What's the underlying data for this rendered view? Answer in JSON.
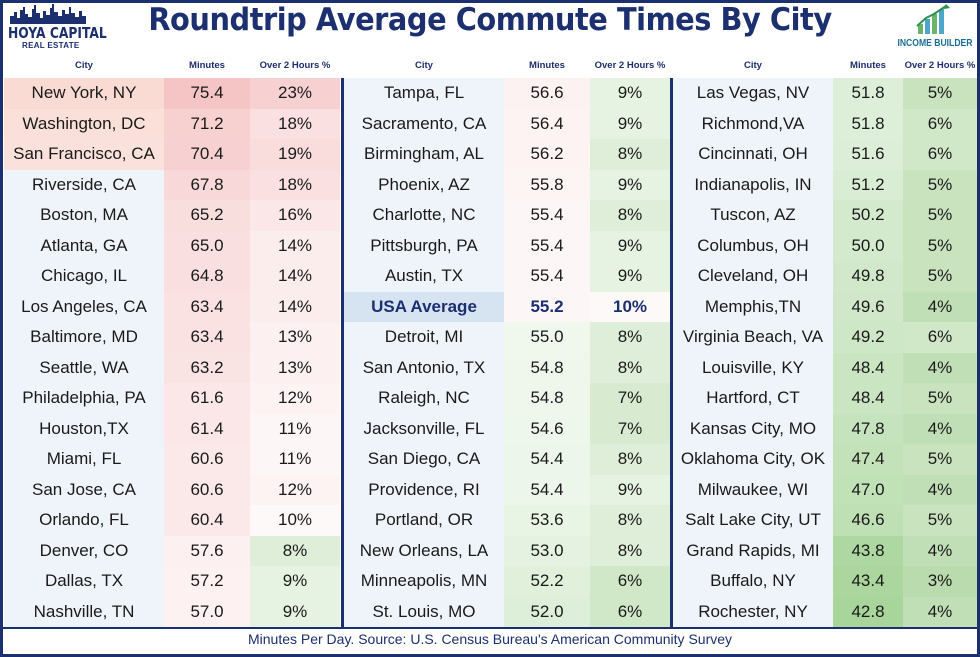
{
  "title": "Roundtrip Average Commute Times By City",
  "logo_left": {
    "name": "HOYA CAPITAL",
    "sub": "REAL ESTATE"
  },
  "logo_right": {
    "name": "INCOME BUILDER"
  },
  "headers": {
    "city": "City",
    "minutes": "Minutes",
    "over2": "Over 2 Hours %"
  },
  "footer": "Minutes Per Day. Source: U.S. Census Bureau's American Community Survey",
  "colors": {
    "navy": "#1c2f6e",
    "red_high": "#f2b9b9",
    "green_high": "#9fd08a",
    "usa_highlight": "#d6e4f2"
  },
  "columns": [
    [
      {
        "city": "New York, NY",
        "minutes": "75.4",
        "pct": "23%"
      },
      {
        "city": "Washington, DC",
        "minutes": "71.2",
        "pct": "18%"
      },
      {
        "city": "San Francisco, CA",
        "minutes": "70.4",
        "pct": "19%"
      },
      {
        "city": "Riverside, CA",
        "minutes": "67.8",
        "pct": "18%"
      },
      {
        "city": "Boston, MA",
        "minutes": "65.2",
        "pct": "16%"
      },
      {
        "city": "Atlanta, GA",
        "minutes": "65.0",
        "pct": "14%"
      },
      {
        "city": "Chicago, IL",
        "minutes": "64.8",
        "pct": "14%"
      },
      {
        "city": "Los Angeles, CA",
        "minutes": "63.4",
        "pct": "14%"
      },
      {
        "city": "Baltimore, MD",
        "minutes": "63.4",
        "pct": "13%"
      },
      {
        "city": "Seattle, WA",
        "minutes": "63.2",
        "pct": "13%"
      },
      {
        "city": "Philadelphia, PA",
        "minutes": "61.6",
        "pct": "12%"
      },
      {
        "city": "Houston,TX",
        "minutes": "61.4",
        "pct": "11%"
      },
      {
        "city": "Miami, FL",
        "minutes": "60.6",
        "pct": "11%"
      },
      {
        "city": "San Jose, CA",
        "minutes": "60.6",
        "pct": "12%"
      },
      {
        "city": "Orlando, FL",
        "minutes": "60.4",
        "pct": "10%"
      },
      {
        "city": "Denver, CO",
        "minutes": "57.6",
        "pct": "8%"
      },
      {
        "city": "Dallas, TX",
        "minutes": "57.2",
        "pct": "9%"
      },
      {
        "city": "Nashville, TN",
        "minutes": "57.0",
        "pct": "9%"
      }
    ],
    [
      {
        "city": "Tampa, FL",
        "minutes": "56.6",
        "pct": "9%"
      },
      {
        "city": "Sacramento, CA",
        "minutes": "56.4",
        "pct": "9%"
      },
      {
        "city": "Birmingham, AL",
        "minutes": "56.2",
        "pct": "8%"
      },
      {
        "city": "Phoenix, AZ",
        "minutes": "55.8",
        "pct": "9%"
      },
      {
        "city": "Charlotte, NC",
        "minutes": "55.4",
        "pct": "8%"
      },
      {
        "city": "Pittsburgh, PA",
        "minutes": "55.4",
        "pct": "9%"
      },
      {
        "city": "Austin, TX",
        "minutes": "55.4",
        "pct": "9%"
      },
      {
        "city": "USA Average",
        "minutes": "55.2",
        "pct": "10%",
        "highlight": true
      },
      {
        "city": "Detroit, MI",
        "minutes": "55.0",
        "pct": "8%"
      },
      {
        "city": "San Antonio, TX",
        "minutes": "54.8",
        "pct": "8%"
      },
      {
        "city": "Raleigh, NC",
        "minutes": "54.8",
        "pct": "7%"
      },
      {
        "city": "Jacksonville, FL",
        "minutes": "54.6",
        "pct": "7%"
      },
      {
        "city": "San Diego, CA",
        "minutes": "54.4",
        "pct": "8%"
      },
      {
        "city": "Providence, RI",
        "minutes": "54.4",
        "pct": "9%"
      },
      {
        "city": "Portland, OR",
        "minutes": "53.6",
        "pct": "8%"
      },
      {
        "city": "New Orleans, LA",
        "minutes": "53.0",
        "pct": "8%"
      },
      {
        "city": "Minneapolis, MN",
        "minutes": "52.2",
        "pct": "6%"
      },
      {
        "city": "St. Louis, MO",
        "minutes": "52.0",
        "pct": "6%"
      }
    ],
    [
      {
        "city": "Las Vegas, NV",
        "minutes": "51.8",
        "pct": "5%"
      },
      {
        "city": "Richmond,VA",
        "minutes": "51.8",
        "pct": "6%"
      },
      {
        "city": "Cincinnati, OH",
        "minutes": "51.6",
        "pct": "6%"
      },
      {
        "city": "Indianapolis, IN",
        "minutes": "51.2",
        "pct": "5%"
      },
      {
        "city": "Tuscon, AZ",
        "minutes": "50.2",
        "pct": "5%"
      },
      {
        "city": "Columbus, OH",
        "minutes": "50.0",
        "pct": "5%"
      },
      {
        "city": "Cleveland, OH",
        "minutes": "49.8",
        "pct": "5%"
      },
      {
        "city": "Memphis,TN",
        "minutes": "49.6",
        "pct": "4%"
      },
      {
        "city": "Virginia Beach, VA",
        "minutes": "49.2",
        "pct": "6%"
      },
      {
        "city": "Louisville, KY",
        "minutes": "48.4",
        "pct": "4%"
      },
      {
        "city": "Hartford, CT",
        "minutes": "48.4",
        "pct": "5%"
      },
      {
        "city": "Kansas City, MO",
        "minutes": "47.8",
        "pct": "4%"
      },
      {
        "city": "Oklahoma City, OK",
        "minutes": "47.4",
        "pct": "5%"
      },
      {
        "city": "Milwaukee, WI",
        "minutes": "47.0",
        "pct": "4%"
      },
      {
        "city": "Salt Lake City, UT",
        "minutes": "46.6",
        "pct": "5%"
      },
      {
        "city": "Grand Rapids, MI",
        "minutes": "43.8",
        "pct": "4%"
      },
      {
        "city": "Buffalo, NY",
        "minutes": "43.4",
        "pct": "3%"
      },
      {
        "city": "Rochester, NY",
        "minutes": "42.8",
        "pct": "4%"
      }
    ]
  ]
}
